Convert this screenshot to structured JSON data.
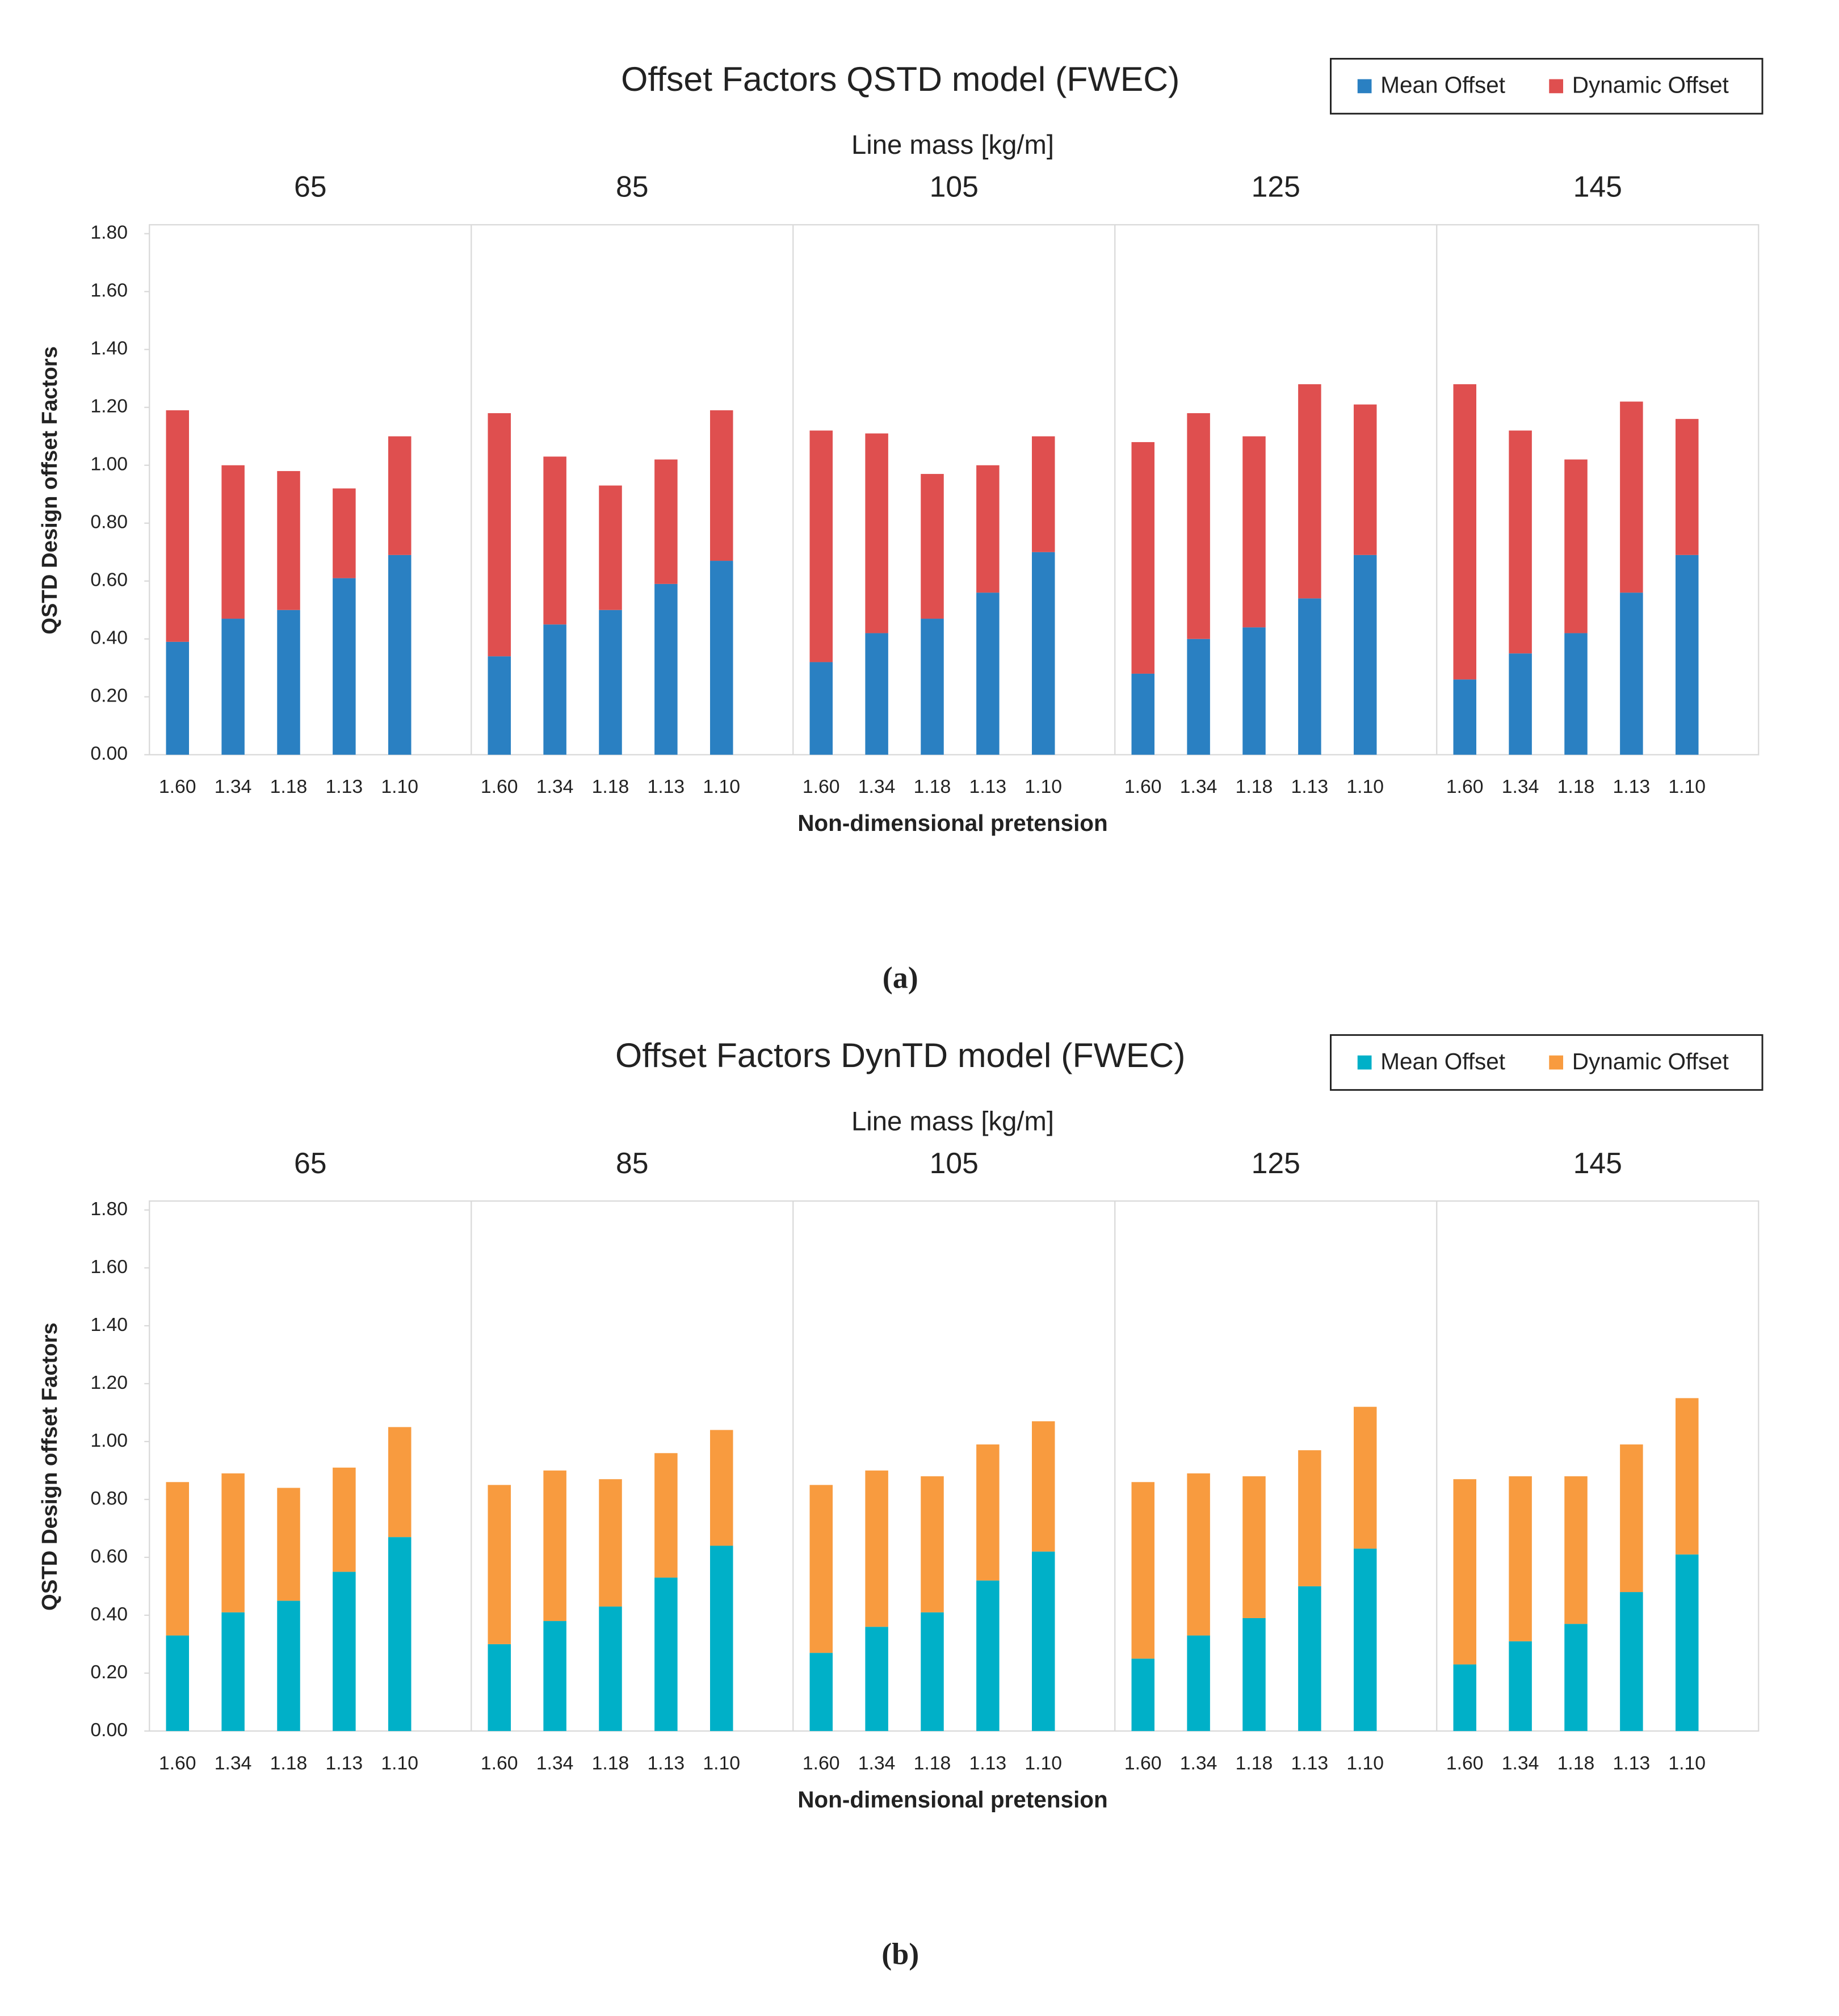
{
  "chart_data": [
    {
      "type": "bar",
      "stacked": true,
      "title": "Offset Factors QSTD model (FWEC)",
      "caption": "(a)",
      "group_label": "Line mass [kg/m]",
      "groups": [
        "65",
        "85",
        "105",
        "125",
        "145"
      ],
      "x_label": "Non-dimensional pretension",
      "y_label": "QSTD Design offset Factors",
      "categories": [
        "1.60",
        "1.34",
        "1.18",
        "1.13",
        "1.10",
        "1.60",
        "1.34",
        "1.18",
        "1.13",
        "1.10",
        "1.60",
        "1.34",
        "1.18",
        "1.13",
        "1.10",
        "1.60",
        "1.34",
        "1.18",
        "1.13",
        "1.10",
        "1.60",
        "1.34",
        "1.18",
        "1.13",
        "1.10"
      ],
      "series": [
        {
          "name": "Mean Offset",
          "color": "#2a80c2",
          "values": [
            0.39,
            0.47,
            0.5,
            0.61,
            0.69,
            0.34,
            0.45,
            0.5,
            0.59,
            0.67,
            0.32,
            0.42,
            0.47,
            0.56,
            0.7,
            0.28,
            0.4,
            0.44,
            0.54,
            0.69,
            0.26,
            0.35,
            0.42,
            0.56,
            0.69
          ]
        },
        {
          "name": "Dynamic Offset",
          "color": "#df4f4f",
          "values": [
            0.8,
            0.53,
            0.48,
            0.31,
            0.41,
            0.84,
            0.58,
            0.43,
            0.43,
            0.52,
            0.8,
            0.69,
            0.5,
            0.44,
            0.4,
            0.8,
            0.78,
            0.66,
            0.74,
            0.52,
            1.02,
            0.77,
            0.6,
            0.66,
            0.47
          ]
        }
      ],
      "ylim": [
        0,
        1.8
      ],
      "yticks": [
        {
          "value": 0,
          "label": "0.00"
        },
        {
          "value": 0.2,
          "label": "0.20"
        },
        {
          "value": 0.4,
          "label": "0.40"
        },
        {
          "value": 0.6,
          "label": "0.60"
        },
        {
          "value": 0.8,
          "label": "0.80"
        },
        {
          "value": 1.0,
          "label": "1.00"
        },
        {
          "value": 1.2,
          "label": "1.20"
        },
        {
          "value": 1.4,
          "label": "1.40"
        },
        {
          "value": 1.6,
          "label": "1.60"
        },
        {
          "value": 1.8,
          "label": "1.80"
        }
      ],
      "grid": false,
      "legend": "top-right"
    },
    {
      "type": "bar",
      "stacked": true,
      "title": "Offset Factors DynTD model (FWEC)",
      "caption": "(b)",
      "group_label": "Line mass [kg/m]",
      "groups": [
        "65",
        "85",
        "105",
        "125",
        "145"
      ],
      "x_label": "Non-dimensional pretension",
      "y_label": "QSTD Design offset Factors",
      "categories": [
        "1.60",
        "1.34",
        "1.18",
        "1.13",
        "1.10",
        "1.60",
        "1.34",
        "1.18",
        "1.13",
        "1.10",
        "1.60",
        "1.34",
        "1.18",
        "1.13",
        "1.10",
        "1.60",
        "1.34",
        "1.18",
        "1.13",
        "1.10",
        "1.60",
        "1.34",
        "1.18",
        "1.13",
        "1.10"
      ],
      "series": [
        {
          "name": "Mean Offset",
          "color": "#00b0c8",
          "values": [
            0.33,
            0.41,
            0.45,
            0.55,
            0.67,
            0.3,
            0.38,
            0.43,
            0.53,
            0.64,
            0.27,
            0.36,
            0.41,
            0.52,
            0.62,
            0.25,
            0.33,
            0.39,
            0.5,
            0.63,
            0.23,
            0.31,
            0.37,
            0.48,
            0.61
          ]
        },
        {
          "name": "Dynamic Offset",
          "color": "#f89b3f",
          "values": [
            0.53,
            0.48,
            0.39,
            0.36,
            0.38,
            0.55,
            0.52,
            0.44,
            0.43,
            0.4,
            0.58,
            0.54,
            0.47,
            0.47,
            0.45,
            0.61,
            0.56,
            0.49,
            0.47,
            0.49,
            0.64,
            0.57,
            0.51,
            0.51,
            0.54
          ]
        }
      ],
      "ylim": [
        0,
        1.8
      ],
      "yticks": [
        {
          "value": 0,
          "label": "0.00"
        },
        {
          "value": 0.2,
          "label": "0.20"
        },
        {
          "value": 0.4,
          "label": "0.40"
        },
        {
          "value": 0.6,
          "label": "0.60"
        },
        {
          "value": 0.8,
          "label": "0.80"
        },
        {
          "value": 1.0,
          "label": "1.00"
        },
        {
          "value": 1.2,
          "label": "1.20"
        },
        {
          "value": 1.4,
          "label": "1.40"
        },
        {
          "value": 1.6,
          "label": "1.60"
        },
        {
          "value": 1.8,
          "label": "1.80"
        }
      ],
      "grid": false,
      "legend": "top-right"
    }
  ]
}
